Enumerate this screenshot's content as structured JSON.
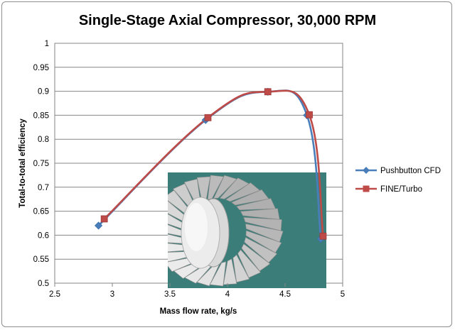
{
  "chart_data": {
    "type": "scatter",
    "title": "Single-Stage Axial Compressor, 30,000 RPM",
    "xlabel": "Mass flow rate, kg/s",
    "ylabel": "Total-to-total efficiency",
    "xlim": [
      2.5,
      5
    ],
    "ylim": [
      0.5,
      1
    ],
    "x_ticks": [
      "2.5",
      "3",
      "3.5",
      "4",
      "4.5",
      "5"
    ],
    "y_ticks": [
      "0.5",
      "0.55",
      "0.6",
      "0.65",
      "0.7",
      "0.75",
      "0.8",
      "0.85",
      "0.9",
      "0.95",
      "1"
    ],
    "grid": "horizontal",
    "legend_position": "right",
    "smooth_lines": true,
    "series": [
      {
        "name": "Pushbutton CFD",
        "color": "#4a7ebb",
        "marker": "diamond",
        "x": [
          2.88,
          3.81,
          4.35,
          4.69,
          4.81
        ],
        "y": [
          0.62,
          0.84,
          0.899,
          0.85,
          0.592
        ]
      },
      {
        "name": "FINE/Turbo",
        "color": "#be4b48",
        "marker": "square",
        "x": [
          2.93,
          3.83,
          4.35,
          4.71,
          4.83
        ],
        "y": [
          0.634,
          0.845,
          0.899,
          0.851,
          0.598
        ]
      }
    ]
  },
  "inset_image": {
    "description_icon": "compressor-rotor-image",
    "background_color": "#3b7d79"
  }
}
